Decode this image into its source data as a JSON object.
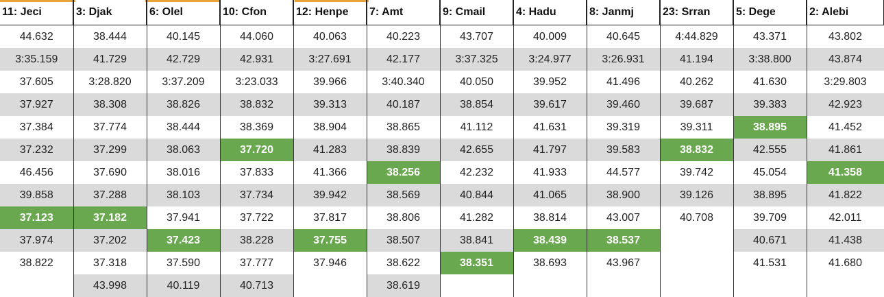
{
  "headers": [
    "11: Jeci",
    "3: Djak",
    "6: Olel",
    "10: Cfon",
    "12: Henpe",
    "7: Amt",
    "9: Cmail",
    "4: Hadu",
    "8: Janmj",
    "23: Srran",
    "5: Dege",
    "2: Alebi"
  ],
  "rows": [
    [
      "44.632",
      "38.444",
      "40.145",
      "44.060",
      "40.063",
      "40.223",
      "43.707",
      "40.009",
      "40.645",
      "4:44.829",
      "43.371",
      "43.802"
    ],
    [
      "3:35.159",
      "41.729",
      "42.729",
      "42.931",
      "3:27.691",
      "42.177",
      "3:37.325",
      "3:24.977",
      "3:26.931",
      "41.194",
      "3:38.800",
      "43.874"
    ],
    [
      "37.605",
      "3:28.820",
      "3:37.209",
      "3:23.033",
      "39.966",
      "3:40.340",
      "40.050",
      "39.952",
      "41.496",
      "40.262",
      "41.630",
      "3:29.803"
    ],
    [
      "37.927",
      "38.308",
      "38.826",
      "38.832",
      "39.313",
      "40.187",
      "38.854",
      "39.617",
      "39.460",
      "39.687",
      "39.383",
      "42.923"
    ],
    [
      "37.384",
      "37.774",
      "38.444",
      "38.369",
      "38.904",
      "38.865",
      "41.112",
      "41.631",
      "39.319",
      "39.311",
      "38.895",
      "41.452"
    ],
    [
      "37.232",
      "37.299",
      "38.063",
      "37.720",
      "41.283",
      "38.839",
      "42.655",
      "41.797",
      "39.583",
      "38.832",
      "42.555",
      "41.861"
    ],
    [
      "46.456",
      "37.690",
      "38.016",
      "37.833",
      "41.366",
      "38.256",
      "42.232",
      "41.933",
      "44.577",
      "39.742",
      "45.054",
      "41.358"
    ],
    [
      "39.858",
      "37.288",
      "38.103",
      "37.734",
      "39.942",
      "38.569",
      "40.844",
      "41.065",
      "38.900",
      "39.126",
      "38.895",
      "41.822"
    ],
    [
      "37.123",
      "37.182",
      "37.941",
      "37.722",
      "37.817",
      "38.806",
      "41.282",
      "38.814",
      "43.007",
      "40.708",
      "39.709",
      "42.011"
    ],
    [
      "37.974",
      "37.202",
      "37.423",
      "38.228",
      "37.755",
      "38.507",
      "38.841",
      "38.439",
      "38.537",
      "",
      "40.671",
      "41.438"
    ],
    [
      "38.822",
      "37.318",
      "37.590",
      "37.777",
      "37.946",
      "38.622",
      "38.351",
      "38.693",
      "43.967",
      "",
      "41.531",
      "41.680"
    ],
    [
      "",
      "43.998",
      "40.119",
      "40.713",
      "",
      "38.619",
      "",
      "",
      "",
      "",
      "",
      ""
    ]
  ],
  "highlighted_cells": [
    [
      8,
      0
    ],
    [
      8,
      1
    ],
    [
      9,
      2
    ],
    [
      5,
      3
    ],
    [
      9,
      4
    ],
    [
      6,
      5
    ],
    [
      10,
      6
    ],
    [
      9,
      7
    ],
    [
      9,
      8
    ],
    [
      5,
      9
    ],
    [
      4,
      10
    ],
    [
      6,
      11
    ]
  ],
  "colors": {
    "highlight": "#6aa84f",
    "shaded_row": "#dadada",
    "accent": "#e8a33a"
  }
}
